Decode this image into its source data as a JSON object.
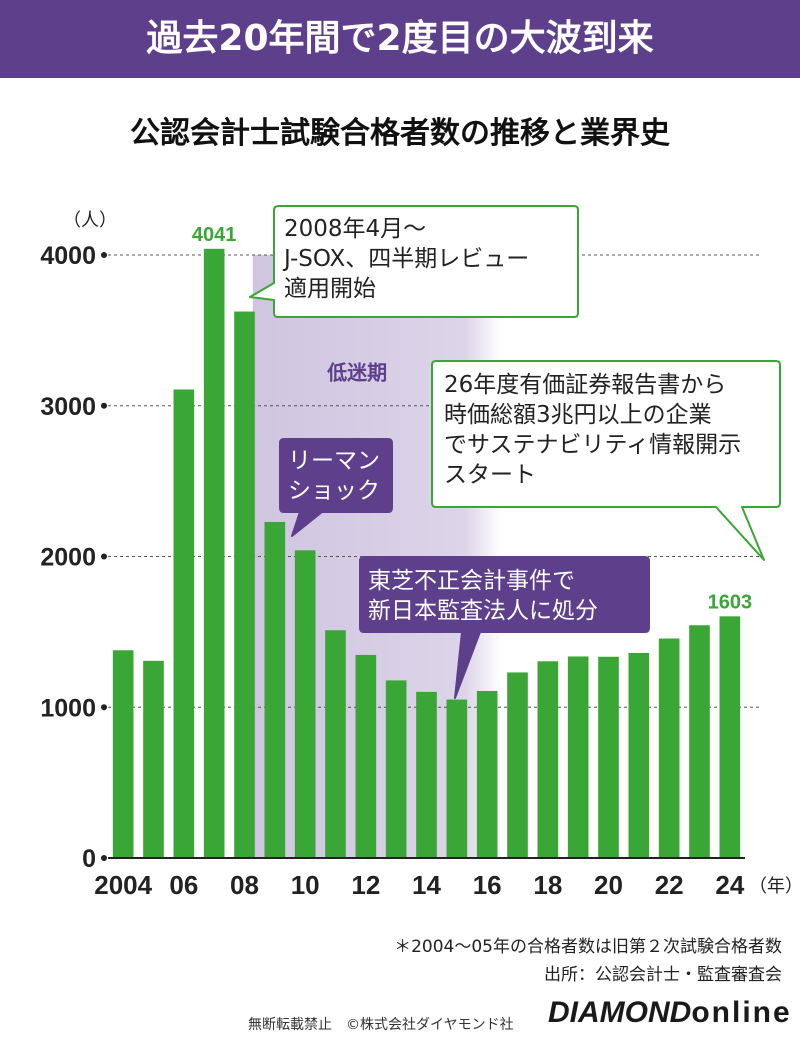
{
  "header": {
    "banner_title": "過去20年間で2度目の大波到来",
    "subtitle": "公認会計士試験合格者数の推移と業界史"
  },
  "colors": {
    "banner": "#5e3f8c",
    "bar": "#3aa635",
    "band": "#d9d2e6",
    "callout_border": "#3aa635",
    "callout_purple": "#5e3f8c"
  },
  "chart_data": {
    "type": "bar",
    "title": "公認会計士試験合格者数の推移と業界史",
    "ylabel": "（人）",
    "xlabel": "（年）",
    "ylim": [
      0,
      4000
    ],
    "yticks": [
      0,
      1000,
      2000,
      3000,
      4000
    ],
    "x_tick_labels": [
      "2004",
      "06",
      "08",
      "10",
      "12",
      "14",
      "16",
      "18",
      "20",
      "22",
      "24"
    ],
    "categories": [
      "2004",
      "2005",
      "2006",
      "2007",
      "2008",
      "2009",
      "2010",
      "2011",
      "2012",
      "2013",
      "2014",
      "2015",
      "2016",
      "2017",
      "2018",
      "2019",
      "2020",
      "2021",
      "2022",
      "2023",
      "2024"
    ],
    "values": [
      1378,
      1308,
      3108,
      4041,
      3625,
      2229,
      2041,
      1511,
      1347,
      1178,
      1102,
      1051,
      1108,
      1231,
      1305,
      1337,
      1335,
      1360,
      1456,
      1544,
      1603
    ],
    "data_labels": [
      {
        "category": "2007",
        "text": "4041"
      },
      {
        "category": "2024",
        "text": "1603"
      }
    ],
    "shaded_period": {
      "from": "2008",
      "to": "2016",
      "label": "低迷期"
    },
    "annotations": [
      {
        "lines": [
          "2008年4月～",
          "J-SOX、四半期レビュー",
          "適用開始"
        ],
        "style": "white"
      },
      {
        "lines": [
          "26年度有価証券報告書から",
          "時価総額3兆円以上の企業",
          "でサステナビリティ情報開示",
          "スタート"
        ],
        "style": "white"
      },
      {
        "lines": [
          "リーマン",
          "ショック"
        ],
        "style": "purple"
      },
      {
        "lines": [
          "東芝不正会計事件で",
          "新日本監査法人に処分"
        ],
        "style": "purple"
      }
    ]
  },
  "footer": {
    "note": "＊2004～05年の合格者数は旧第２次試験合格者数",
    "source": "出所：公認会計士・監査審査会",
    "copyright": "無断転載禁止　©株式会社ダイヤモンド社",
    "brand_main": "DIAMOND",
    "brand_sub": "online"
  }
}
